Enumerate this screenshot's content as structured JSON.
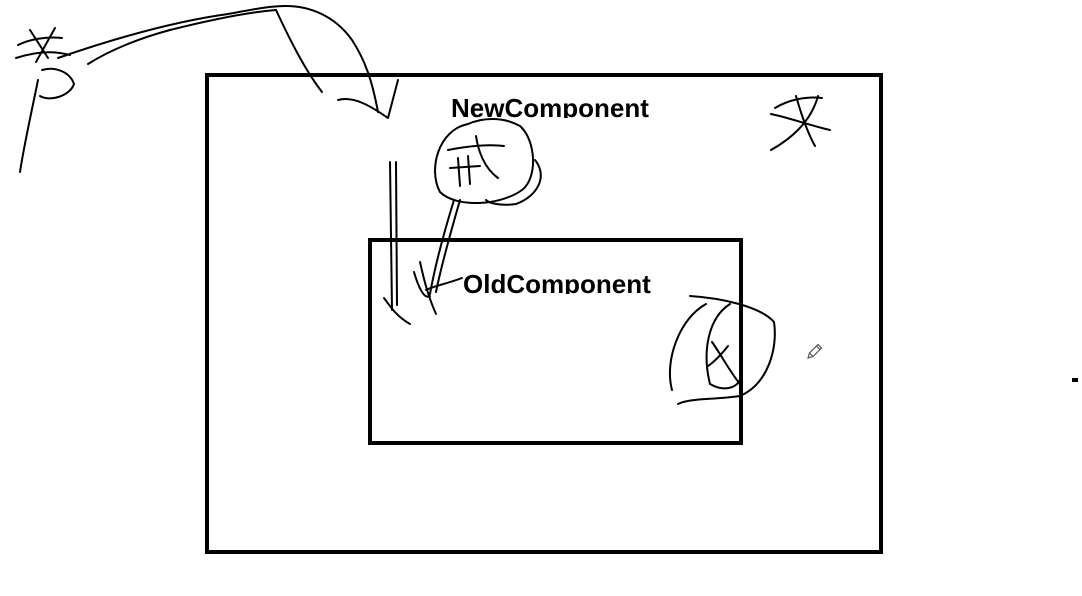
{
  "canvas": {
    "background": "#ffffff",
    "ink_color": "#000000"
  },
  "diagram": {
    "outer_box": {
      "label": "NewComponent"
    },
    "inner_box": {
      "label": "OldComponent"
    }
  },
  "cursor": {
    "icon": "pencil-icon"
  }
}
